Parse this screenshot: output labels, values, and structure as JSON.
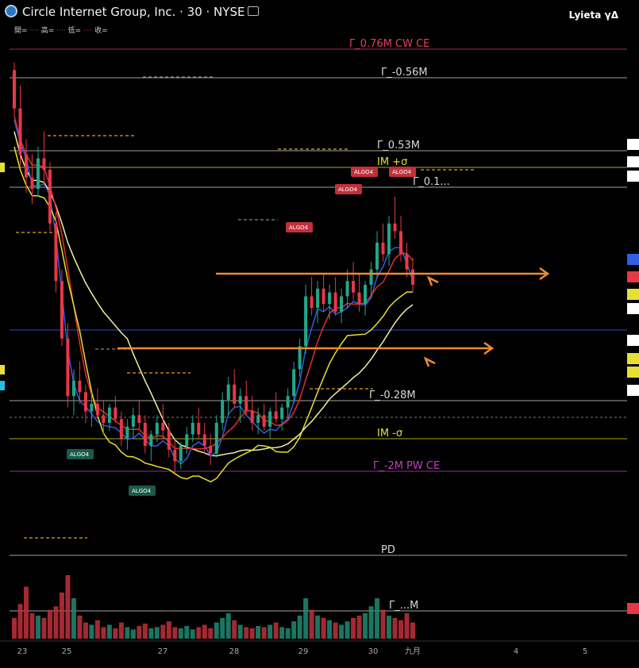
{
  "header": {
    "title": "Circle Internet Group, Inc. · 30 · NYSE",
    "user": "Lyieta γΔ",
    "ohlc_keys": [
      "開=",
      "高=",
      "低=",
      "收="
    ]
  },
  "chart_data": {
    "type": "candlestick",
    "title": "Circle Internet Group, Inc. · 30 · NYSE",
    "x_ticks": [
      "23",
      "25",
      "27",
      "28",
      "29",
      "30",
      "九月",
      "4",
      "5"
    ],
    "levels": [
      {
        "label": "Γ_0.76M CW CE",
        "color": "#e04060"
      },
      {
        "label": "Γ_-0.56M",
        "color": "#d8d8d8"
      },
      {
        "label": "Γ_0.53M",
        "color": "#d8d8d8"
      },
      {
        "label": "IM +σ",
        "color": "#e8e030"
      },
      {
        "label": "Γ_0.1...",
        "color": "#d8d8d8"
      },
      {
        "label": "Γ_-0.28M",
        "color": "#d8d8d8"
      },
      {
        "label": "IM -σ",
        "color": "#e8e030"
      },
      {
        "label": "Γ_-2M PW CE",
        "color": "#c040c0"
      },
      {
        "label": "PD",
        "color": "#d8d8d8"
      },
      {
        "label": "Γ_...M",
        "color": "#d8d8d8"
      }
    ],
    "annotations": [
      "ALGO4",
      "ALGO4",
      "ALGO4",
      "ALGO4",
      "ALGO4",
      "ALGO4"
    ],
    "candles": [
      [
        150,
        152,
        138,
        140
      ],
      [
        140,
        146,
        125,
        128
      ],
      [
        128,
        132,
        118,
        122
      ],
      [
        122,
        128,
        115,
        119
      ],
      [
        119,
        130,
        117,
        127
      ],
      [
        127,
        134,
        120,
        124
      ],
      [
        124,
        126,
        108,
        110
      ],
      [
        110,
        113,
        92,
        95
      ],
      [
        95,
        98,
        78,
        80
      ],
      [
        80,
        84,
        62,
        65
      ],
      [
        65,
        72,
        60,
        69
      ],
      [
        69,
        74,
        63,
        66
      ],
      [
        66,
        68,
        58,
        61
      ],
      [
        61,
        66,
        57,
        63
      ],
      [
        63,
        67,
        59,
        60
      ],
      [
        60,
        64,
        55,
        58
      ],
      [
        58,
        63,
        56,
        62
      ],
      [
        62,
        65,
        58,
        59
      ],
      [
        59,
        61,
        52,
        54
      ],
      [
        54,
        59,
        51,
        57
      ],
      [
        57,
        62,
        54,
        60
      ],
      [
        60,
        64,
        56,
        58
      ],
      [
        58,
        60,
        50,
        52
      ],
      [
        52,
        56,
        48,
        55
      ],
      [
        55,
        60,
        53,
        58
      ],
      [
        58,
        63,
        54,
        56
      ],
      [
        56,
        58,
        49,
        51
      ],
      [
        51,
        54,
        45,
        48
      ],
      [
        48,
        53,
        46,
        52
      ],
      [
        52,
        57,
        50,
        55
      ],
      [
        55,
        60,
        53,
        58
      ],
      [
        58,
        62,
        54,
        55
      ],
      [
        55,
        58,
        50,
        52
      ],
      [
        52,
        55,
        47,
        50
      ],
      [
        50,
        60,
        49,
        58
      ],
      [
        58,
        66,
        56,
        64
      ],
      [
        64,
        70,
        60,
        68
      ],
      [
        68,
        72,
        62,
        63
      ],
      [
        63,
        67,
        58,
        65
      ],
      [
        65,
        69,
        60,
        61
      ],
      [
        61,
        65,
        56,
        58
      ],
      [
        58,
        62,
        55,
        60
      ],
      [
        60,
        63,
        56,
        57
      ],
      [
        57,
        62,
        54,
        61
      ],
      [
        61,
        66,
        58,
        59
      ],
      [
        59,
        63,
        56,
        62
      ],
      [
        62,
        67,
        59,
        65
      ],
      [
        65,
        74,
        63,
        72
      ],
      [
        72,
        80,
        70,
        78
      ],
      [
        78,
        94,
        76,
        91
      ],
      [
        91,
        96,
        86,
        88
      ],
      [
        88,
        95,
        84,
        93
      ],
      [
        93,
        97,
        87,
        89
      ],
      [
        89,
        94,
        85,
        92
      ],
      [
        92,
        96,
        86,
        87
      ],
      [
        87,
        93,
        84,
        91
      ],
      [
        91,
        98,
        88,
        95
      ],
      [
        95,
        100,
        90,
        92
      ],
      [
        92,
        97,
        87,
        89
      ],
      [
        89,
        95,
        86,
        94
      ],
      [
        94,
        100,
        91,
        98
      ],
      [
        98,
        108,
        96,
        105
      ],
      [
        105,
        110,
        100,
        102
      ],
      [
        102,
        112,
        99,
        110
      ],
      [
        110,
        117,
        106,
        108
      ],
      [
        108,
        112,
        100,
        102
      ],
      [
        102,
        105,
        96,
        98
      ],
      [
        98,
        101,
        92,
        94
      ]
    ],
    "volumes": [
      18,
      30,
      45,
      22,
      20,
      18,
      25,
      28,
      40,
      55,
      35,
      20,
      14,
      12,
      16,
      10,
      12,
      9,
      14,
      10,
      8,
      11,
      13,
      9,
      10,
      12,
      15,
      10,
      9,
      11,
      8,
      10,
      12,
      9,
      14,
      18,
      22,
      16,
      12,
      10,
      9,
      11,
      10,
      12,
      14,
      10,
      9,
      15,
      20,
      35,
      25,
      20,
      18,
      16,
      14,
      12,
      15,
      18,
      20,
      22,
      28,
      35,
      25,
      20,
      18,
      16,
      22,
      14
    ],
    "series": [
      {
        "name": "",
        "color": "#f0f0a0"
      },
      {
        "name": "",
        "color": "#3060e0"
      },
      {
        "name": "",
        "color": "#e03030"
      },
      {
        "name": "",
        "color": "#e8e030"
      }
    ]
  }
}
